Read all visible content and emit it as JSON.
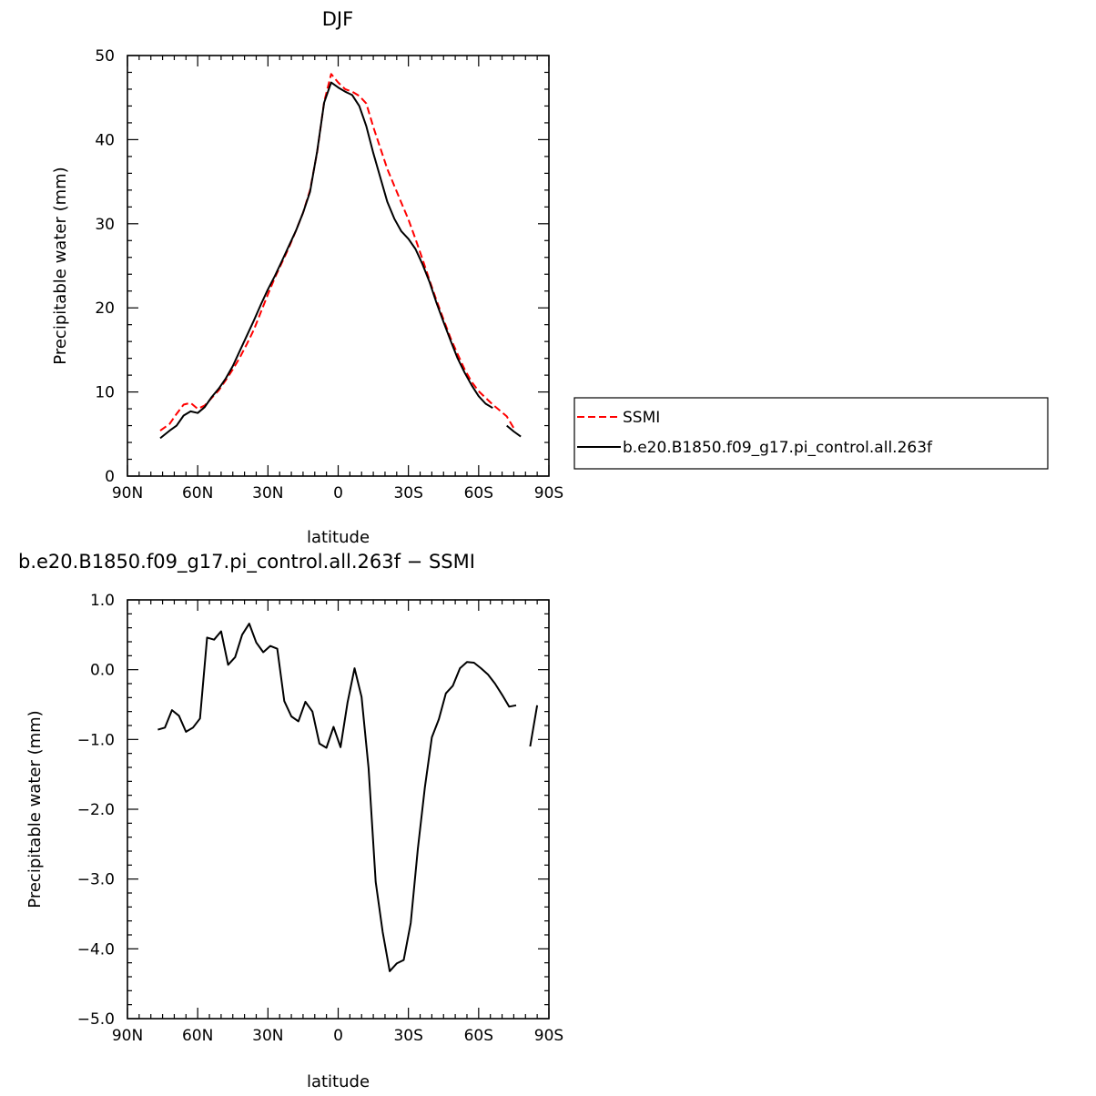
{
  "chart_data": [
    {
      "type": "line",
      "title": "DJF",
      "xlabel": "latitude",
      "ylabel": "Precipitable water (mm)",
      "xlim": [
        -90,
        90
      ],
      "ylim": [
        0,
        50
      ],
      "x_ticks": [
        -90,
        -60,
        -30,
        0,
        30,
        60,
        90
      ],
      "x_tick_labels": [
        "90N",
        "60N",
        "30N",
        "0",
        "30S",
        "60S",
        "90S"
      ],
      "y_ticks": [
        0,
        10,
        20,
        30,
        40,
        50
      ],
      "y_tick_labels": [
        "0",
        "10",
        "20",
        "30",
        "40",
        "50"
      ],
      "grid": false,
      "legend_position": "right",
      "series": [
        {
          "name": "SSMI",
          "color": "#ff0000",
          "dash": "dashed",
          "segments": [
            [
              [
                -76,
                5.4
              ],
              [
                -72,
                6.2
              ],
              [
                -69,
                7.4
              ],
              [
                -66,
                8.5
              ],
              [
                -63,
                8.7
              ],
              [
                -60,
                8.0
              ],
              [
                -57,
                8.4
              ],
              [
                -54,
                9.3
              ],
              [
                -51,
                10.2
              ],
              [
                -48,
                11.4
              ],
              [
                -45,
                12.7
              ],
              [
                -42,
                14.1
              ],
              [
                -39,
                15.7
              ],
              [
                -36,
                17.4
              ],
              [
                -33,
                19.5
              ],
              [
                -30,
                21.6
              ],
              [
                -27,
                23.6
              ],
              [
                -24,
                25.4
              ],
              [
                -21,
                27.2
              ],
              [
                -18,
                29.2
              ],
              [
                -15,
                31.3
              ],
              [
                -12,
                34.0
              ],
              [
                -9,
                38.5
              ],
              [
                -6,
                44.5
              ],
              [
                -3,
                47.8
              ],
              [
                0,
                46.8
              ],
              [
                3,
                46.0
              ],
              [
                6,
                45.7
              ],
              [
                9,
                45.2
              ],
              [
                12,
                44.3
              ],
              [
                15,
                41.5
              ],
              [
                18,
                39.0
              ],
              [
                21,
                36.5
              ],
              [
                24,
                34.5
              ],
              [
                27,
                32.5
              ],
              [
                30,
                30.5
              ],
              [
                33,
                28.2
              ],
              [
                36,
                25.8
              ],
              [
                39,
                23.3
              ],
              [
                42,
                20.9
              ],
              [
                45,
                18.6
              ],
              [
                48,
                16.4
              ],
              [
                51,
                14.5
              ],
              [
                54,
                12.7
              ],
              [
                57,
                11.2
              ],
              [
                60,
                10.1
              ],
              [
                63,
                9.3
              ],
              [
                66,
                8.5
              ],
              [
                69,
                7.8
              ],
              [
                72,
                7.1
              ],
              [
                75,
                5.7
              ]
            ]
          ]
        },
        {
          "name": "b.e20.B1850.f09_g17.pi_control.all.263f",
          "color": "#000000",
          "dash": "solid",
          "segments": [
            [
              [
                -76,
                4.5
              ],
              [
                -72,
                5.4
              ],
              [
                -69,
                6.0
              ],
              [
                -66,
                7.2
              ],
              [
                -63,
                7.7
              ],
              [
                -60,
                7.5
              ],
              [
                -57,
                8.2
              ],
              [
                -54,
                9.4
              ],
              [
                -51,
                10.4
              ],
              [
                -48,
                11.6
              ],
              [
                -45,
                13.1
              ],
              [
                -42,
                14.9
              ],
              [
                -39,
                16.7
              ],
              [
                -36,
                18.5
              ],
              [
                -33,
                20.4
              ],
              [
                -30,
                22.2
              ],
              [
                -27,
                23.8
              ],
              [
                -24,
                25.6
              ],
              [
                -21,
                27.4
              ],
              [
                -18,
                29.2
              ],
              [
                -15,
                31.3
              ],
              [
                -12,
                33.8
              ],
              [
                -9,
                38.6
              ],
              [
                -6,
                44.4
              ],
              [
                -3,
                46.8
              ],
              [
                0,
                46.2
              ],
              [
                3,
                45.7
              ],
              [
                6,
                45.3
              ],
              [
                9,
                44.0
              ],
              [
                12,
                41.6
              ],
              [
                15,
                38.4
              ],
              [
                18,
                35.5
              ],
              [
                21,
                32.6
              ],
              [
                24,
                30.6
              ],
              [
                27,
                29.1
              ],
              [
                30,
                28.2
              ],
              [
                33,
                27.0
              ],
              [
                36,
                25.2
              ],
              [
                39,
                23.1
              ],
              [
                42,
                20.6
              ],
              [
                45,
                18.3
              ],
              [
                48,
                16.1
              ],
              [
                51,
                14.0
              ],
              [
                54,
                12.3
              ],
              [
                57,
                10.8
              ],
              [
                60,
                9.5
              ],
              [
                63,
                8.6
              ],
              [
                66,
                8.1
              ]
            ],
            [
              [
                72,
                6.0
              ],
              [
                75,
                5.3
              ],
              [
                78,
                4.7
              ]
            ]
          ]
        }
      ]
    },
    {
      "type": "line",
      "title": "b.e20.B1850.f09_g17.pi_control.all.263f − SSMI",
      "xlabel": "latitude",
      "ylabel": "Precipitable water (mm)",
      "xlim": [
        -90,
        90
      ],
      "ylim": [
        -5,
        1
      ],
      "x_ticks": [
        -90,
        -60,
        -30,
        0,
        30,
        60,
        90
      ],
      "x_tick_labels": [
        "90N",
        "60N",
        "30N",
        "0",
        "30S",
        "60S",
        "90S"
      ],
      "y_ticks": [
        -5,
        -4,
        -3,
        -2,
        -1,
        0,
        1
      ],
      "y_tick_labels": [
        "−5.0",
        "−4.0",
        "−3.0",
        "−2.0",
        "−1.0",
        "0.0",
        "1.0"
      ],
      "grid": false,
      "series": [
        {
          "color": "#000000",
          "dash": "solid",
          "segments": [
            [
              [
                -77,
                -0.86
              ],
              [
                -74,
                -0.83
              ],
              [
                -71,
                -0.58
              ],
              [
                -68,
                -0.66
              ],
              [
                -65,
                -0.89
              ],
              [
                -62,
                -0.83
              ],
              [
                -59,
                -0.7
              ],
              [
                -56,
                0.46
              ],
              [
                -53,
                0.43
              ],
              [
                -50,
                0.55
              ],
              [
                -47,
                0.07
              ],
              [
                -44,
                0.18
              ],
              [
                -41,
                0.5
              ],
              [
                -38,
                0.66
              ],
              [
                -35,
                0.39
              ],
              [
                -32,
                0.25
              ],
              [
                -29,
                0.34
              ],
              [
                -26,
                0.3
              ],
              [
                -23,
                -0.45
              ],
              [
                -20,
                -0.67
              ],
              [
                -17,
                -0.74
              ],
              [
                -14,
                -0.46
              ],
              [
                -11,
                -0.6
              ],
              [
                -8,
                -1.06
              ],
              [
                -5,
                -1.12
              ],
              [
                -2,
                -0.82
              ],
              [
                1,
                -1.11
              ],
              [
                4,
                -0.47
              ],
              [
                7,
                0.02
              ],
              [
                10,
                -0.39
              ],
              [
                13,
                -1.41
              ],
              [
                16,
                -3.04
              ],
              [
                19,
                -3.76
              ],
              [
                22,
                -4.32
              ],
              [
                25,
                -4.21
              ],
              [
                28,
                -4.16
              ],
              [
                31,
                -3.63
              ],
              [
                34,
                -2.57
              ],
              [
                37,
                -1.69
              ],
              [
                40,
                -0.97
              ],
              [
                43,
                -0.71
              ],
              [
                46,
                -0.34
              ],
              [
                49,
                -0.23
              ],
              [
                52,
                0.02
              ],
              [
                55,
                0.11
              ],
              [
                58,
                0.1
              ],
              [
                61,
                0.02
              ],
              [
                64,
                -0.07
              ],
              [
                67,
                -0.2
              ],
              [
                70,
                -0.36
              ],
              [
                73,
                -0.53
              ],
              [
                76,
                -0.51
              ]
            ],
            [
              [
                82,
                -1.1
              ],
              [
                85,
                -0.51
              ]
            ]
          ]
        }
      ]
    }
  ]
}
